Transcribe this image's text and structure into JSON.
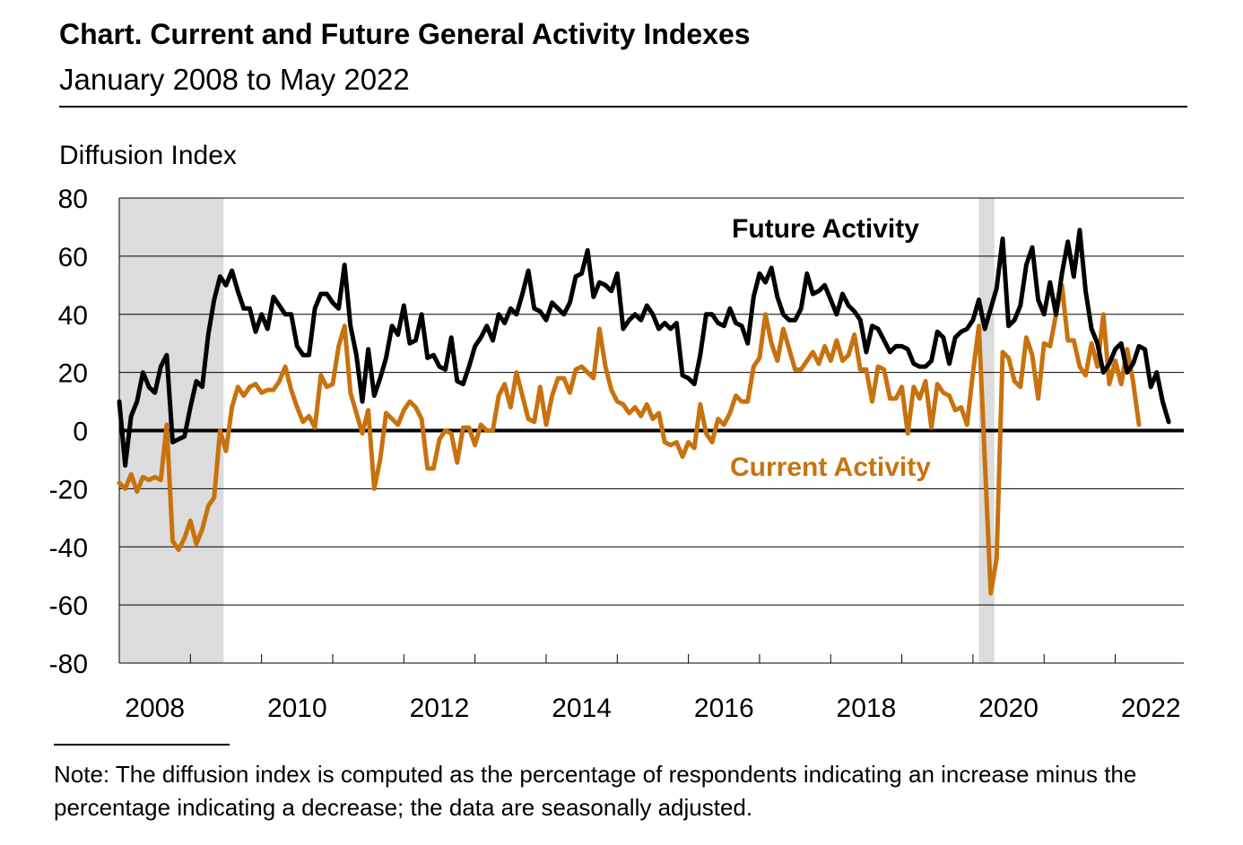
{
  "title": "Chart. Current and Future General Activity Indexes",
  "subtitle": "January 2008 to May 2022",
  "note": "Note: The diffusion index is computed as the percentage of respondents indicating an increase minus the percentage indicating a decrease; the data are seasonally adjusted.",
  "colors": {
    "future": "#000000",
    "current": "#c8720e",
    "recession": "#dcdcdc",
    "grid": "#000000"
  },
  "chart_data": {
    "type": "line",
    "ylabel": "Diffusion Index",
    "ylim": [
      -80,
      80
    ],
    "yticks": [
      80,
      60,
      40,
      20,
      0,
      -20,
      -40,
      -60,
      -80
    ],
    "xticks": [
      "2008",
      "2010",
      "2012",
      "2014",
      "2016",
      "2018",
      "2020",
      "2022"
    ],
    "x_start": "2008-01",
    "x_end": "2022-05",
    "recessions": [
      {
        "start": "2008-01",
        "end": "2009-06"
      },
      {
        "start": "2020-02",
        "end": "2020-04"
      }
    ],
    "series": [
      {
        "name": "Future Activity",
        "values": [
          10,
          -12,
          5,
          10,
          20,
          15,
          13,
          22,
          26,
          -4,
          -3,
          -2,
          8,
          17,
          15,
          33,
          45,
          53,
          50,
          55,
          48,
          42,
          42,
          34,
          40,
          35,
          46,
          43,
          40,
          40,
          29,
          26,
          26,
          42,
          47,
          47,
          44,
          42,
          57,
          36,
          26,
          10,
          28,
          12,
          18,
          25,
          36,
          33,
          43,
          30,
          31,
          40,
          25,
          26,
          22,
          21,
          32,
          17,
          16,
          22,
          29,
          32,
          36,
          31,
          40,
          37,
          42,
          40,
          47,
          55,
          42,
          41,
          38,
          44,
          42,
          40,
          44,
          53,
          54,
          62,
          46,
          51,
          50,
          48,
          54,
          35,
          38,
          40,
          38,
          43,
          40,
          35,
          37,
          35,
          37,
          19,
          18,
          16,
          26,
          40,
          40,
          37,
          36,
          42,
          37,
          36,
          30,
          46,
          54,
          51,
          56,
          46,
          40,
          38,
          38,
          42,
          54,
          47,
          48,
          50,
          45,
          40,
          47,
          43,
          41,
          38,
          27,
          36,
          35,
          31,
          27,
          29,
          29,
          28,
          23,
          22,
          22,
          24,
          34,
          32,
          23,
          32,
          34,
          35,
          38,
          45,
          35,
          42,
          49,
          66,
          36,
          38,
          43,
          57,
          63,
          45,
          40,
          51,
          40,
          54,
          65,
          53,
          69,
          48,
          35,
          30,
          20,
          23,
          28,
          30,
          20,
          23,
          29,
          28,
          15,
          20,
          10,
          3
        ]
      },
      {
        "name": "Current Activity",
        "values": [
          -18,
          -20,
          -15,
          -21,
          -16,
          -17,
          -16,
          -17,
          2,
          -38,
          -41,
          -37,
          -31,
          -39,
          -34,
          -26,
          -23,
          0,
          -7,
          8,
          15,
          12,
          15,
          16,
          13,
          14,
          14,
          17,
          22,
          14,
          8,
          3,
          5,
          1,
          19,
          15,
          16,
          29,
          36,
          13,
          6,
          -1,
          7,
          -20,
          -10,
          6,
          4,
          2,
          7,
          10,
          8,
          4,
          -13,
          -13,
          -3,
          0,
          -1,
          -11,
          1,
          1,
          -5,
          2,
          0,
          0,
          12,
          16,
          8,
          20,
          12,
          4,
          3,
          15,
          2,
          12,
          18,
          18,
          13,
          21,
          22,
          20,
          18,
          35,
          22,
          14,
          10,
          9,
          6,
          8,
          5,
          9,
          4,
          6,
          -4,
          -5,
          -4,
          -9,
          -4,
          -6,
          9,
          -1,
          -4,
          4,
          2,
          6,
          12,
          10,
          10,
          22,
          25,
          40,
          30,
          24,
          35,
          28,
          21,
          21,
          24,
          27,
          23,
          29,
          24,
          31,
          24,
          26,
          33,
          21,
          21,
          10,
          22,
          21,
          11,
          11,
          15,
          -1,
          15,
          11,
          17,
          1,
          16,
          13,
          12,
          7,
          8,
          2,
          20,
          36,
          -10,
          -56,
          -44,
          27,
          25,
          17,
          15,
          32,
          26,
          11,
          30,
          29,
          40,
          50,
          31,
          31,
          22,
          19,
          30,
          22,
          40,
          16,
          24,
          16,
          28,
          17,
          2
        ]
      }
    ]
  },
  "series_labels": {
    "future": "Future Activity",
    "current": "Current Activity"
  }
}
